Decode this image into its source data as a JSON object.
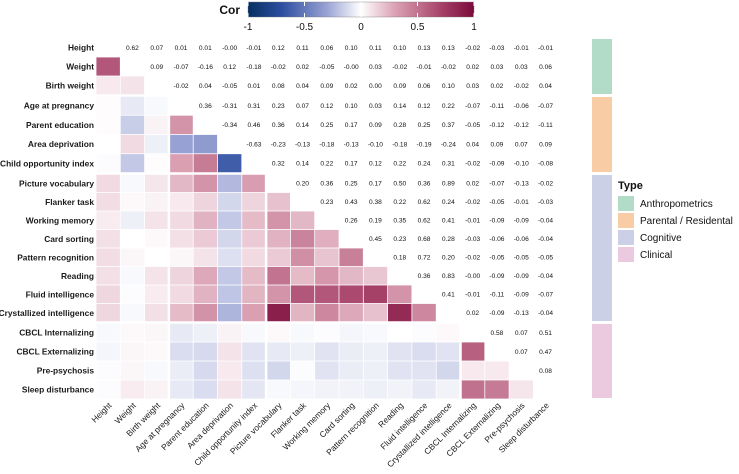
{
  "chart_data": {
    "type": "heatmap",
    "colorbar": {
      "title": "Cor",
      "ticks": [
        "-1",
        "-0.5",
        "0",
        "0.5",
        "1"
      ],
      "tick_values": [
        -1,
        -0.5,
        0,
        0.5,
        1
      ],
      "colors": {
        "neg": "#053061",
        "mid": "#ffffff",
        "pos": "#7a0a3a"
      }
    },
    "variables": [
      "Height",
      "Weight",
      "Birth weight",
      "Age at pregnancy",
      "Parent education",
      "Area deprivation",
      "Child opportunity index",
      "Picture vocabulary",
      "Flanker task",
      "Working memory",
      "Card sorting",
      "Pattern recognition",
      "Reading",
      "Fluid intelligence",
      "Crystallized intelligence",
      "CBCL Internalizing",
      "CBCL Externalizing",
      "Pre-psychosis",
      "Sleep disturbance"
    ],
    "groups": [
      {
        "name": "Anthropometrics",
        "count": 3,
        "color": "#b3dcc8"
      },
      {
        "name": "Parental / Residental",
        "count": 4,
        "color": "#f8cca4"
      },
      {
        "name": "Cognitive",
        "count": 8,
        "color": "#ccd0e6"
      },
      {
        "name": "Clinical",
        "count": 4,
        "color": "#ebcadf"
      }
    ],
    "legend_title": "Type",
    "legend_position": "right",
    "upper_values": [
      [
        null,
        "0.62",
        "0.07",
        "0.01",
        "0.01",
        "-0.00",
        "-0.01",
        "0.12",
        "0.11",
        "0.06",
        "0.10",
        "0.11",
        "0.10",
        "0.13",
        "0.13",
        "-0.02",
        "-0.03",
        "-0.01",
        "-0.01"
      ],
      [
        null,
        null,
        "0.09",
        "-0.07",
        "-0.16",
        "0.12",
        "-0.18",
        "-0.02",
        "0.02",
        "-0.05",
        "-0.00",
        "0.03",
        "-0.02",
        "-0.01",
        "-0.02",
        "0.02",
        "0.03",
        "0.03",
        "0.06"
      ],
      [
        null,
        null,
        null,
        "-0.02",
        "0.04",
        "-0.05",
        "0.01",
        "0.08",
        "0.04",
        "0.09",
        "0.02",
        "0.00",
        "0.09",
        "0.06",
        "0.10",
        "0.03",
        "0.02",
        "-0.02",
        "0.04"
      ],
      [
        null,
        null,
        null,
        null,
        "0.36",
        "-0.31",
        "0.31",
        "0.23",
        "0.07",
        "0.12",
        "0.10",
        "0.03",
        "0.14",
        "0.12",
        "0.22",
        "-0.07",
        "-0.11",
        "-0.06",
        "-0.07"
      ],
      [
        null,
        null,
        null,
        null,
        null,
        "-0.34",
        "0.46",
        "0.36",
        "0.14",
        "0.25",
        "0.17",
        "0.09",
        "0.28",
        "0.25",
        "0.37",
        "-0.05",
        "-0.12",
        "-0.12",
        "-0.11"
      ],
      [
        null,
        null,
        null,
        null,
        null,
        null,
        "-0.63",
        "-0.23",
        "-0.13",
        "-0.18",
        "-0.13",
        "-0.10",
        "-0.18",
        "-0.19",
        "-0.24",
        "0.04",
        "0.09",
        "0.07",
        "0.09"
      ],
      [
        null,
        null,
        null,
        null,
        null,
        null,
        null,
        "0.32",
        "0.14",
        "0.22",
        "0.17",
        "0.12",
        "0.22",
        "0.24",
        "0.31",
        "-0.02",
        "-0.09",
        "-0.10",
        "-0.08"
      ],
      [
        null,
        null,
        null,
        null,
        null,
        null,
        null,
        null,
        "0.20",
        "0.36",
        "0.25",
        "0.17",
        "0.50",
        "0.36",
        "0.89",
        "0.02",
        "-0.07",
        "-0.13",
        "-0.02"
      ],
      [
        null,
        null,
        null,
        null,
        null,
        null,
        null,
        null,
        null,
        "0.23",
        "0.43",
        "0.38",
        "0.22",
        "0.62",
        "0.24",
        "-0.02",
        "-0.05",
        "-0.01",
        "-0.03"
      ],
      [
        null,
        null,
        null,
        null,
        null,
        null,
        null,
        null,
        null,
        null,
        "0.26",
        "0.19",
        "0.35",
        "0.62",
        "0.41",
        "-0.01",
        "-0.09",
        "-0.09",
        "-0.04"
      ],
      [
        null,
        null,
        null,
        null,
        null,
        null,
        null,
        null,
        null,
        null,
        null,
        "0.45",
        "0.23",
        "0.68",
        "0.28",
        "-0.03",
        "-0.06",
        "-0.06",
        "-0.04"
      ],
      [
        null,
        null,
        null,
        null,
        null,
        null,
        null,
        null,
        null,
        null,
        null,
        null,
        "0.18",
        "0.72",
        "0.20",
        "-0.02",
        "-0.05",
        "-0.05",
        "-0.05"
      ],
      [
        null,
        null,
        null,
        null,
        null,
        null,
        null,
        null,
        null,
        null,
        null,
        null,
        null,
        "0.36",
        "0.83",
        "-0.00",
        "-0.09",
        "-0.09",
        "-0.04"
      ],
      [
        null,
        null,
        null,
        null,
        null,
        null,
        null,
        null,
        null,
        null,
        null,
        null,
        null,
        null,
        "0.41",
        "-0.01",
        "-0.11",
        "-0.09",
        "-0.07"
      ],
      [
        null,
        null,
        null,
        null,
        null,
        null,
        null,
        null,
        null,
        null,
        null,
        null,
        null,
        null,
        null,
        "0.02",
        "-0.09",
        "-0.13",
        "-0.04"
      ],
      [
        null,
        null,
        null,
        null,
        null,
        null,
        null,
        null,
        null,
        null,
        null,
        null,
        null,
        null,
        null,
        null,
        "0.58",
        "0.07",
        "0.51"
      ],
      [
        null,
        null,
        null,
        null,
        null,
        null,
        null,
        null,
        null,
        null,
        null,
        null,
        null,
        null,
        null,
        null,
        null,
        "0.07",
        "0.47"
      ],
      [
        null,
        null,
        null,
        null,
        null,
        null,
        null,
        null,
        null,
        null,
        null,
        null,
        null,
        null,
        null,
        null,
        null,
        null,
        "0.08"
      ],
      [
        null,
        null,
        null,
        null,
        null,
        null,
        null,
        null,
        null,
        null,
        null,
        null,
        null,
        null,
        null,
        null,
        null,
        null,
        null
      ]
    ]
  }
}
